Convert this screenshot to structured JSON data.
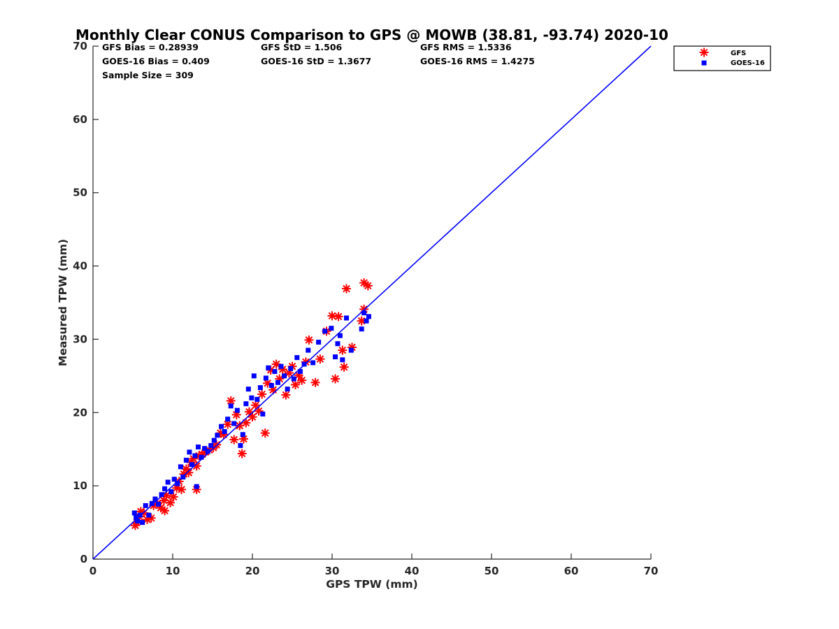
{
  "colors": {
    "gfs": "#ff0000",
    "goes16": "#0000ff",
    "one_to_one_line": "#0000ff",
    "axis": "#262626"
  },
  "stats": {
    "gfs_bias": "GFS Bias = 0.28939",
    "gfs_std": "GFS StD = 1.506",
    "gfs_rms": "GFS RMS = 1.5336",
    "goes_bias": "GOES-16 Bias = 0.409",
    "goes_std": "GOES-16 StD = 1.3677",
    "goes_rms": "GOES-16 RMS = 1.4275",
    "sample_size": "Sample Size = 309"
  },
  "chart_data": {
    "type": "scatter",
    "title": "Monthly Clear CONUS Comparison to GPS @ MOWB (38.81, -93.74) 2020-10",
    "xlabel": "GPS TPW (mm)",
    "ylabel": "Measured TPW (mm)",
    "xlim": [
      0,
      70
    ],
    "ylim": [
      0,
      70
    ],
    "x_ticks": [
      "0",
      "10",
      "20",
      "30",
      "40",
      "50",
      "60",
      "70"
    ],
    "y_ticks": [
      "0",
      "10",
      "20",
      "30",
      "40",
      "50",
      "60",
      "70"
    ],
    "grid": false,
    "legend_position": "top-right outside plot",
    "reference_line": {
      "x": [
        0,
        70
      ],
      "y": [
        0,
        70
      ]
    },
    "series": [
      {
        "name": "GFS",
        "marker": "asterisk",
        "points": [
          [
            5.3,
            4.6
          ],
          [
            5.5,
            5.0
          ],
          [
            5.8,
            5.8
          ],
          [
            6.0,
            6.5
          ],
          [
            6.4,
            6.3
          ],
          [
            6.8,
            5.4
          ],
          [
            7.3,
            5.6
          ],
          [
            7.6,
            7.3
          ],
          [
            8.1,
            7.6
          ],
          [
            8.5,
            7.0
          ],
          [
            8.9,
            8.0
          ],
          [
            9.2,
            8.7
          ],
          [
            9.0,
            6.6
          ],
          [
            9.7,
            7.7
          ],
          [
            10.1,
            8.5
          ],
          [
            10.5,
            9.7
          ],
          [
            10.8,
            10.6
          ],
          [
            11.1,
            9.5
          ],
          [
            11.4,
            11.6
          ],
          [
            11.7,
            12.3
          ],
          [
            12.0,
            11.8
          ],
          [
            12.3,
            13.2
          ],
          [
            12.6,
            13.7
          ],
          [
            13.0,
            12.7
          ],
          [
            13.3,
            14.1
          ],
          [
            13.0,
            9.5
          ],
          [
            13.7,
            14.3
          ],
          [
            14.1,
            14.6
          ],
          [
            14.6,
            14.9
          ],
          [
            15.1,
            15.2
          ],
          [
            15.5,
            15.6
          ],
          [
            16.0,
            17.2
          ],
          [
            16.4,
            17.0
          ],
          [
            16.9,
            18.4
          ],
          [
            17.3,
            21.6
          ],
          [
            17.7,
            16.3
          ],
          [
            18.0,
            19.7
          ],
          [
            18.4,
            18.2
          ],
          [
            18.7,
            14.4
          ],
          [
            18.9,
            16.4
          ],
          [
            19.2,
            18.6
          ],
          [
            19.6,
            20.1
          ],
          [
            20.0,
            19.4
          ],
          [
            20.4,
            21.0
          ],
          [
            20.8,
            20.2
          ],
          [
            21.2,
            22.5
          ],
          [
            21.6,
            17.2
          ],
          [
            21.9,
            24.0
          ],
          [
            22.3,
            25.8
          ],
          [
            22.6,
            23.1
          ],
          [
            23.0,
            26.6
          ],
          [
            23.4,
            24.6
          ],
          [
            23.8,
            25.9
          ],
          [
            24.2,
            22.4
          ],
          [
            24.6,
            25.4
          ],
          [
            25.0,
            26.3
          ],
          [
            25.4,
            23.8
          ],
          [
            25.8,
            25.1
          ],
          [
            26.2,
            24.4
          ],
          [
            26.7,
            26.9
          ],
          [
            27.1,
            29.9
          ],
          [
            27.9,
            24.1
          ],
          [
            28.5,
            27.3
          ],
          [
            29.3,
            31.1
          ],
          [
            30.0,
            33.2
          ],
          [
            30.4,
            24.6
          ],
          [
            30.8,
            33.1
          ],
          [
            31.3,
            28.5
          ],
          [
            31.5,
            26.2
          ],
          [
            31.8,
            36.9
          ],
          [
            32.5,
            28.9
          ],
          [
            33.7,
            32.5
          ],
          [
            34.0,
            34.1
          ],
          [
            34.0,
            37.7
          ],
          [
            34.5,
            37.3
          ]
        ]
      },
      {
        "name": "GOES-16",
        "marker": "square",
        "points": [
          [
            5.2,
            6.3
          ],
          [
            5.4,
            5.7
          ],
          [
            5.6,
            5.2
          ],
          [
            5.9,
            6.0
          ],
          [
            6.2,
            5.0
          ],
          [
            6.6,
            7.3
          ],
          [
            7.0,
            6.0
          ],
          [
            7.4,
            7.6
          ],
          [
            7.8,
            8.2
          ],
          [
            8.2,
            7.5
          ],
          [
            8.6,
            8.8
          ],
          [
            9.0,
            9.6
          ],
          [
            9.4,
            10.5
          ],
          [
            9.8,
            9.2
          ],
          [
            10.2,
            10.9
          ],
          [
            10.6,
            10.3
          ],
          [
            11.0,
            12.6
          ],
          [
            11.3,
            11.2
          ],
          [
            11.7,
            13.5
          ],
          [
            12.1,
            14.6
          ],
          [
            12.4,
            12.9
          ],
          [
            12.8,
            14.1
          ],
          [
            13.0,
            9.9
          ],
          [
            13.2,
            15.3
          ],
          [
            13.6,
            13.9
          ],
          [
            14.0,
            15.1
          ],
          [
            14.4,
            14.7
          ],
          [
            14.8,
            15.5
          ],
          [
            15.2,
            16.2
          ],
          [
            15.6,
            16.9
          ],
          [
            16.1,
            18.1
          ],
          [
            16.5,
            17.4
          ],
          [
            16.9,
            19.1
          ],
          [
            17.3,
            20.9
          ],
          [
            17.7,
            18.5
          ],
          [
            18.1,
            20.3
          ],
          [
            18.5,
            15.5
          ],
          [
            18.8,
            17.0
          ],
          [
            19.2,
            21.2
          ],
          [
            19.5,
            23.2
          ],
          [
            19.9,
            22.0
          ],
          [
            20.2,
            25.0
          ],
          [
            20.6,
            21.8
          ],
          [
            21.0,
            23.4
          ],
          [
            21.3,
            19.8
          ],
          [
            21.7,
            24.7
          ],
          [
            22.0,
            26.1
          ],
          [
            22.4,
            23.7
          ],
          [
            22.8,
            25.6
          ],
          [
            23.2,
            24.1
          ],
          [
            23.6,
            26.3
          ],
          [
            24.0,
            25.0
          ],
          [
            24.4,
            23.2
          ],
          [
            24.8,
            26.0
          ],
          [
            25.2,
            24.6
          ],
          [
            25.6,
            27.5
          ],
          [
            26.0,
            25.6
          ],
          [
            26.5,
            26.6
          ],
          [
            27.0,
            28.5
          ],
          [
            27.6,
            26.8
          ],
          [
            28.3,
            29.6
          ],
          [
            29.1,
            31.1
          ],
          [
            29.9,
            31.5
          ],
          [
            30.4,
            27.6
          ],
          [
            30.7,
            29.4
          ],
          [
            31.0,
            30.5
          ],
          [
            31.3,
            27.2
          ],
          [
            31.8,
            32.9
          ],
          [
            32.4,
            28.5
          ],
          [
            33.7,
            31.4
          ],
          [
            34.0,
            33.6
          ],
          [
            34.3,
            32.5
          ],
          [
            34.6,
            33.1
          ]
        ]
      }
    ]
  }
}
